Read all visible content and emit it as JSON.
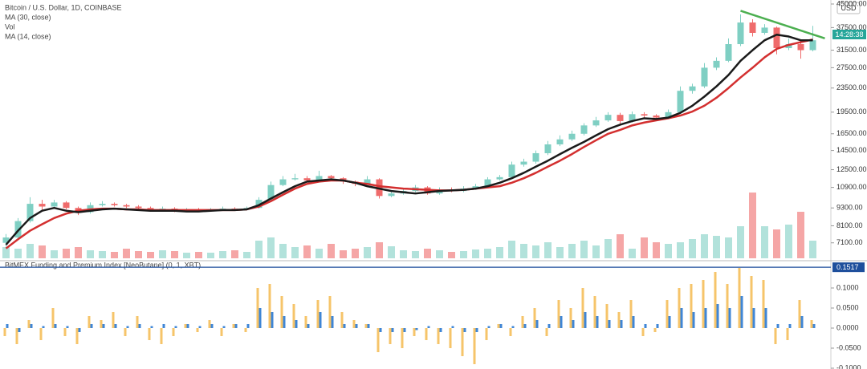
{
  "chart_data": [
    {
      "type": "candlestick",
      "title": "Bitcoin / U.S. Dollar, 1D, COINBASE",
      "currency": "USD",
      "countdown": "14:28:38",
      "log_scale": true,
      "grid": false,
      "up_color": "#7fcfc3",
      "down_color": "#ef6b6b",
      "ylim": [
        6300,
        45000
      ],
      "yticks": [
        {
          "value": 45000,
          "label": "45000.00"
        },
        {
          "value": 37500,
          "label": "37500.00"
        },
        {
          "value": 31500,
          "label": "31500.00"
        },
        {
          "value": 27500,
          "label": "27500.00"
        },
        {
          "value": 23500,
          "label": "23500.00"
        },
        {
          "value": 19500,
          "label": "19500.00"
        },
        {
          "value": 16500,
          "label": "16500.00"
        },
        {
          "value": 14500,
          "label": "14500.00"
        },
        {
          "value": 12500,
          "label": "12500.00"
        },
        {
          "value": 10900,
          "label": "10900.00"
        },
        {
          "value": 9300,
          "label": "9300.00"
        },
        {
          "value": 8100,
          "label": "8100.00"
        },
        {
          "value": 7100,
          "label": "7100.00"
        }
      ],
      "open": [
        7100,
        7400,
        8400,
        9600,
        9400,
        9700,
        9300,
        9000,
        9500,
        9600,
        9500,
        9400,
        9300,
        9200,
        9250,
        9100,
        9200,
        9150,
        9200,
        9250,
        9200,
        9300,
        9900,
        11100,
        11600,
        11700,
        11500,
        11900,
        11700,
        11400,
        11200,
        11600,
        10200,
        10400,
        10600,
        10900,
        10400,
        10700,
        10600,
        10800,
        11000,
        11600,
        11800,
        13000,
        13300,
        14200,
        15200,
        15800,
        16500,
        17600,
        18300,
        19100,
        18200,
        19200,
        19000,
        18700,
        19500,
        23000,
        23800,
        27500,
        29000,
        33000,
        39000,
        36000,
        37500,
        32000,
        33000,
        31500
      ],
      "high": [
        7600,
        8600,
        10100,
        9900,
        9900,
        9800,
        9400,
        9700,
        9800,
        9700,
        9600,
        9500,
        9400,
        9400,
        9350,
        9300,
        9300,
        9300,
        9400,
        9350,
        9400,
        10100,
        11400,
        11900,
        12100,
        11900,
        12400,
        12000,
        11800,
        11500,
        11900,
        11700,
        10600,
        10800,
        11100,
        11000,
        10900,
        10900,
        11000,
        11200,
        11800,
        12000,
        13300,
        13600,
        14500,
        15600,
        16300,
        16900,
        17900,
        18800,
        19500,
        19400,
        19600,
        19500,
        19200,
        19900,
        23800,
        24300,
        28500,
        29800,
        34500,
        41500,
        40000,
        38500,
        37800,
        34500,
        34000,
        38000
      ],
      "low": [
        6900,
        7300,
        8300,
        9100,
        9300,
        9200,
        8800,
        8900,
        9400,
        9400,
        9300,
        9200,
        9100,
        9100,
        9000,
        9050,
        9100,
        9100,
        9150,
        9150,
        9150,
        9250,
        9850,
        11000,
        11500,
        11300,
        11400,
        11500,
        11200,
        11000,
        11100,
        10000,
        10100,
        10300,
        10500,
        10300,
        10300,
        10500,
        10500,
        10700,
        10900,
        11500,
        11700,
        12800,
        13100,
        14000,
        15000,
        15600,
        16300,
        17400,
        18100,
        17800,
        18000,
        18700,
        18400,
        18500,
        19300,
        22500,
        23500,
        27000,
        28700,
        32500,
        35000,
        35500,
        30500,
        31500,
        29500,
        31200
      ],
      "close": [
        7400,
        8400,
        9600,
        9400,
        9700,
        9300,
        9000,
        9500,
        9600,
        9500,
        9400,
        9300,
        9200,
        9250,
        9100,
        9200,
        9150,
        9200,
        9250,
        9200,
        9300,
        9900,
        11100,
        11600,
        11700,
        11500,
        11900,
        11700,
        11400,
        11200,
        11600,
        10200,
        10400,
        10600,
        10900,
        10400,
        10700,
        10600,
        10800,
        11000,
        11600,
        11800,
        13000,
        13300,
        14200,
        15200,
        15800,
        16500,
        17600,
        18300,
        19100,
        18200,
        19200,
        19000,
        18700,
        19500,
        23000,
        23800,
        27500,
        29000,
        33000,
        39000,
        36000,
        37500,
        32000,
        33000,
        31500,
        34000
      ],
      "series": [
        {
          "name": "MA (30, close)",
          "color": "#d32f2f",
          "values": [
            6800,
            7300,
            7800,
            8200,
            8600,
            8900,
            9100,
            9200,
            9250,
            9250,
            9200,
            9200,
            9150,
            9150,
            9150,
            9150,
            9150,
            9150,
            9150,
            9150,
            9200,
            9400,
            9800,
            10300,
            10800,
            11200,
            11400,
            11500,
            11500,
            11300,
            11200,
            11000,
            10900,
            10800,
            10750,
            10700,
            10650,
            10650,
            10700,
            10800,
            10900,
            11000,
            11300,
            11700,
            12200,
            12800,
            13400,
            14100,
            14900,
            15700,
            16500,
            17000,
            17600,
            18000,
            18300,
            18600,
            19000,
            19600,
            20500,
            21800,
            23500,
            25500,
            27500,
            29800,
            31800,
            32800,
            33500,
            34200
          ]
        },
        {
          "name": "MA (14, close)",
          "color": "#1a1a1a",
          "values": [
            7000,
            7800,
            8600,
            9100,
            9300,
            9100,
            9000,
            9100,
            9200,
            9250,
            9200,
            9150,
            9100,
            9100,
            9100,
            9050,
            9050,
            9100,
            9150,
            9150,
            9200,
            9500,
            10000,
            10500,
            11000,
            11400,
            11500,
            11600,
            11500,
            11300,
            11000,
            10800,
            10600,
            10500,
            10400,
            10500,
            10600,
            10650,
            10700,
            10800,
            11000,
            11300,
            11700,
            12200,
            12800,
            13400,
            14100,
            14800,
            15500,
            16300,
            17100,
            17700,
            18200,
            18600,
            18500,
            18700,
            19400,
            20500,
            22000,
            23800,
            26000,
            29000,
            31500,
            34000,
            35500,
            35000,
            34000,
            34000
          ]
        }
      ],
      "volume": {
        "name": "Vol",
        "ylim": [
          0,
          100
        ],
        "values": [
          14,
          12,
          18,
          16,
          10,
          12,
          14,
          10,
          9,
          8,
          12,
          9,
          8,
          10,
          9,
          7,
          8,
          7,
          9,
          10,
          8,
          22,
          26,
          18,
          14,
          16,
          12,
          18,
          10,
          12,
          14,
          20,
          15,
          10,
          9,
          12,
          10,
          8,
          9,
          11,
          12,
          14,
          22,
          18,
          16,
          20,
          14,
          18,
          22,
          16,
          24,
          30,
          12,
          26,
          20,
          18,
          20,
          24,
          30,
          28,
          26,
          40,
          82,
          40,
          36,
          42,
          58,
          22
        ]
      },
      "trendline": {
        "color": "#4caf50",
        "x": [
          61,
          68
        ],
        "y": [
          42700,
          34500
        ]
      }
    },
    {
      "type": "bar",
      "title": "BitMEX Funding and Premium Index [NeoButane] (0, 1, XBT)",
      "ylim": [
        -0.102,
        0.164
      ],
      "yticks": [
        {
          "value": 0.1,
          "label": "0.1000"
        },
        {
          "value": 0.05,
          "label": "0.0500"
        },
        {
          "value": 0,
          "label": "0.0000"
        },
        {
          "value": -0.05,
          "label": "-0.0500"
        },
        {
          "value": -0.1,
          "label": "-0.1000"
        }
      ],
      "last_value": 0.1517,
      "last_color": "#1e4f9c",
      "series": [
        {
          "color": "#f6c46a",
          "values": [
            -0.02,
            -0.04,
            0.02,
            -0.03,
            0.05,
            -0.02,
            -0.04,
            0.03,
            0.02,
            0.04,
            -0.02,
            0.03,
            -0.03,
            -0.04,
            -0.02,
            0.01,
            -0.01,
            0.02,
            -0.02,
            0.01,
            -0.01,
            0.1,
            0.11,
            0.08,
            0.06,
            0.03,
            0.07,
            0.08,
            0.04,
            0.02,
            0.01,
            -0.06,
            -0.04,
            -0.05,
            -0.02,
            -0.03,
            -0.04,
            -0.05,
            -0.07,
            -0.09,
            -0.03,
            0.01,
            -0.02,
            0.03,
            0.05,
            -0.02,
            0.07,
            0.05,
            0.1,
            0.08,
            0.06,
            0.04,
            0.07,
            -0.02,
            -0.01,
            0.07,
            0.1,
            0.11,
            0.12,
            0.14,
            0.11,
            0.15,
            0.13,
            0.12,
            -0.04,
            -0.03,
            0.07,
            0.02
          ]
        },
        {
          "color": "#3f86d6",
          "values": [
            0.01,
            -0.01,
            0.01,
            0.005,
            0.01,
            0.005,
            -0.01,
            0.01,
            0.01,
            0.01,
            0.005,
            0.01,
            0.005,
            0.01,
            0.005,
            0.01,
            0.005,
            0.01,
            0.005,
            0.01,
            0.01,
            0.05,
            0.04,
            0.03,
            0.02,
            0.01,
            0.04,
            0.03,
            0.01,
            0.01,
            0.01,
            -0.01,
            -0.01,
            -0.01,
            -0.005,
            0.005,
            -0.01,
            0.005,
            -0.01,
            -0.01,
            0.005,
            0.01,
            0.005,
            0.01,
            0.02,
            0.01,
            0.03,
            0.02,
            0.04,
            0.03,
            0.02,
            0.02,
            0.03,
            0.01,
            0.01,
            0.03,
            0.05,
            0.04,
            0.05,
            0.06,
            0.05,
            0.08,
            0.05,
            0.05,
            0.01,
            0.01,
            0.03,
            0.01
          ]
        }
      ]
    }
  ]
}
